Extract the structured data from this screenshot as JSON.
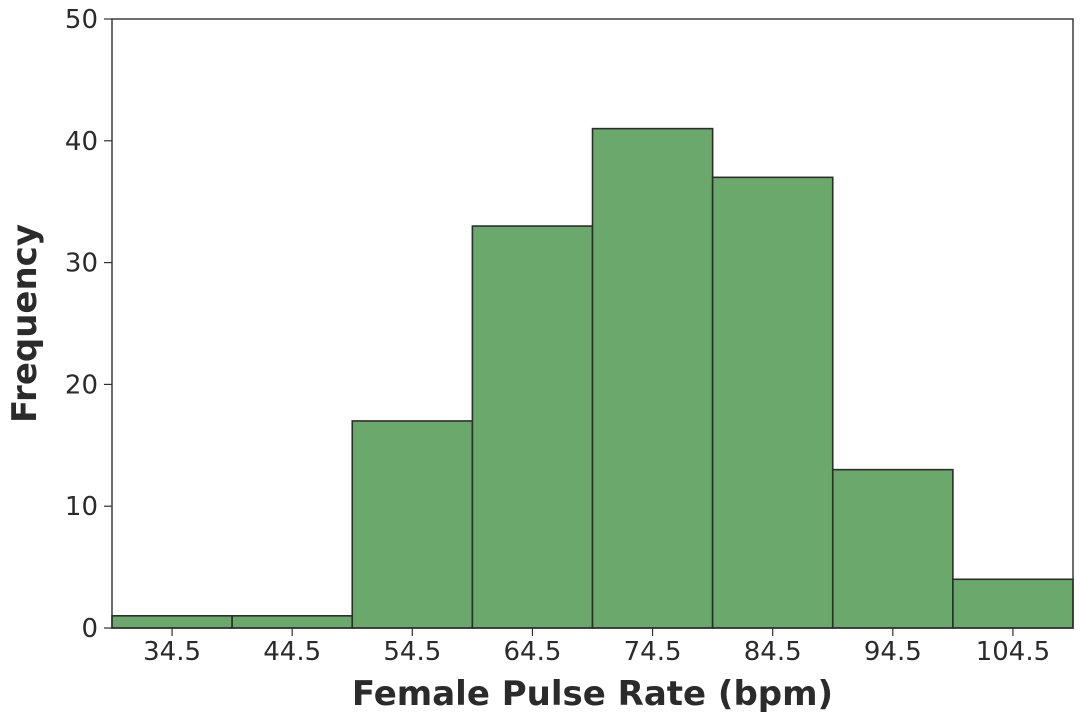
{
  "chart_data": {
    "type": "bar",
    "title": "",
    "xlabel": "Female Pulse Rate (bpm)",
    "ylabel": "Frequency",
    "categories": [
      "34.5",
      "44.5",
      "54.5",
      "64.5",
      "74.5",
      "84.5",
      "94.5",
      "104.5"
    ],
    "values": [
      1,
      1,
      17,
      33,
      41,
      37,
      13,
      4
    ],
    "ylim": [
      0,
      50
    ],
    "yticks": [
      0,
      10,
      20,
      30,
      40,
      50
    ],
    "grid": false,
    "bar_color": "#6aa86c",
    "edge_color": "#2d2d2d"
  }
}
